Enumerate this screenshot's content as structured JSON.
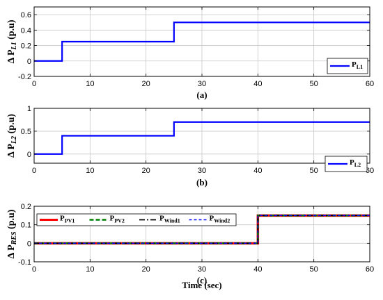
{
  "chart_data": [
    {
      "type": "line",
      "caption": "(a)",
      "ylabel": {
        "prefix": "Δ P",
        "sub": "L1",
        "unit": " (p.u)"
      },
      "xlim": [
        0,
        60
      ],
      "ylim": [
        -0.2,
        0.7
      ],
      "x_ticks": [
        "0",
        "10",
        "20",
        "30",
        "40",
        "50",
        "60"
      ],
      "y_ticks": [
        {
          "v": -0.2,
          "label": "-0.2"
        },
        {
          "v": 0,
          "label": "0"
        },
        {
          "v": 0.2,
          "label": "0.2"
        },
        {
          "v": 0.4,
          "label": "0.4"
        },
        {
          "v": 0.6,
          "label": "0.6"
        }
      ],
      "grid": true,
      "legend_position": "bottom-right",
      "series": [
        {
          "name": "P",
          "sub": "L1",
          "color": "#0000ff",
          "dash": "",
          "width": 2.2,
          "x": [
            0,
            5,
            5,
            25,
            25,
            60
          ],
          "y": [
            0,
            0,
            0.25,
            0.25,
            0.5,
            0.5
          ]
        }
      ]
    },
    {
      "type": "line",
      "caption": "(b)",
      "ylabel": {
        "prefix": "Δ P",
        "sub": "L2",
        "unit": " (p.u)"
      },
      "xlim": [
        0,
        60
      ],
      "ylim": [
        -0.2,
        1.0
      ],
      "x_ticks": [
        "0",
        "10",
        "20",
        "30",
        "40",
        "50",
        "60"
      ],
      "y_ticks": [
        {
          "v": 0,
          "label": "0"
        },
        {
          "v": 0.5,
          "label": "0.5"
        },
        {
          "v": 1,
          "label": "1"
        }
      ],
      "grid": true,
      "legend_position": "bottom-right",
      "series": [
        {
          "name": "P",
          "sub": "L2",
          "color": "#0000ff",
          "dash": "",
          "width": 2.2,
          "x": [
            0,
            5,
            5,
            25,
            25,
            60
          ],
          "y": [
            0,
            0,
            0.4,
            0.4,
            0.7,
            0.7
          ]
        }
      ]
    },
    {
      "type": "line",
      "caption": "(c)",
      "ylabel": {
        "prefix": "Δ P",
        "sub": "RES",
        "unit": " (p.u)"
      },
      "xlabel": "Time (sec)",
      "xlim": [
        0,
        60
      ],
      "ylim": [
        -0.1,
        0.2
      ],
      "x_ticks": [
        "0",
        "10",
        "20",
        "30",
        "40",
        "50",
        "60"
      ],
      "y_ticks": [
        {
          "v": -0.1,
          "label": "-0.1"
        },
        {
          "v": 0,
          "label": "0"
        },
        {
          "v": 0.1,
          "label": "0.1"
        },
        {
          "v": 0.2,
          "label": "0.2"
        }
      ],
      "grid": true,
      "legend_position": "top-left",
      "series": [
        {
          "name": "P",
          "sub": "PV1",
          "color": "#ff0000",
          "dash": "",
          "width": 3.5,
          "x": [
            0,
            40,
            40,
            60
          ],
          "y": [
            0,
            0,
            0.15,
            0.15
          ]
        },
        {
          "name": "P",
          "sub": "PV2",
          "color": "#008000",
          "dash": "6,3",
          "width": 2.6,
          "x": [
            0,
            40,
            40,
            60
          ],
          "y": [
            0,
            0,
            0.15,
            0.15
          ]
        },
        {
          "name": "P",
          "sub": "Wind1",
          "color": "#000000",
          "dash": "8,3,2,3",
          "width": 1.8,
          "x": [
            0,
            40,
            40,
            60
          ],
          "y": [
            0,
            0,
            0.15,
            0.15
          ]
        },
        {
          "name": "P",
          "sub": "Wind2",
          "color": "#0000ff",
          "dash": "4,3",
          "width": 1.4,
          "x": [
            0,
            40,
            40,
            60
          ],
          "y": [
            0,
            0,
            0.15,
            0.15
          ]
        }
      ]
    }
  ]
}
